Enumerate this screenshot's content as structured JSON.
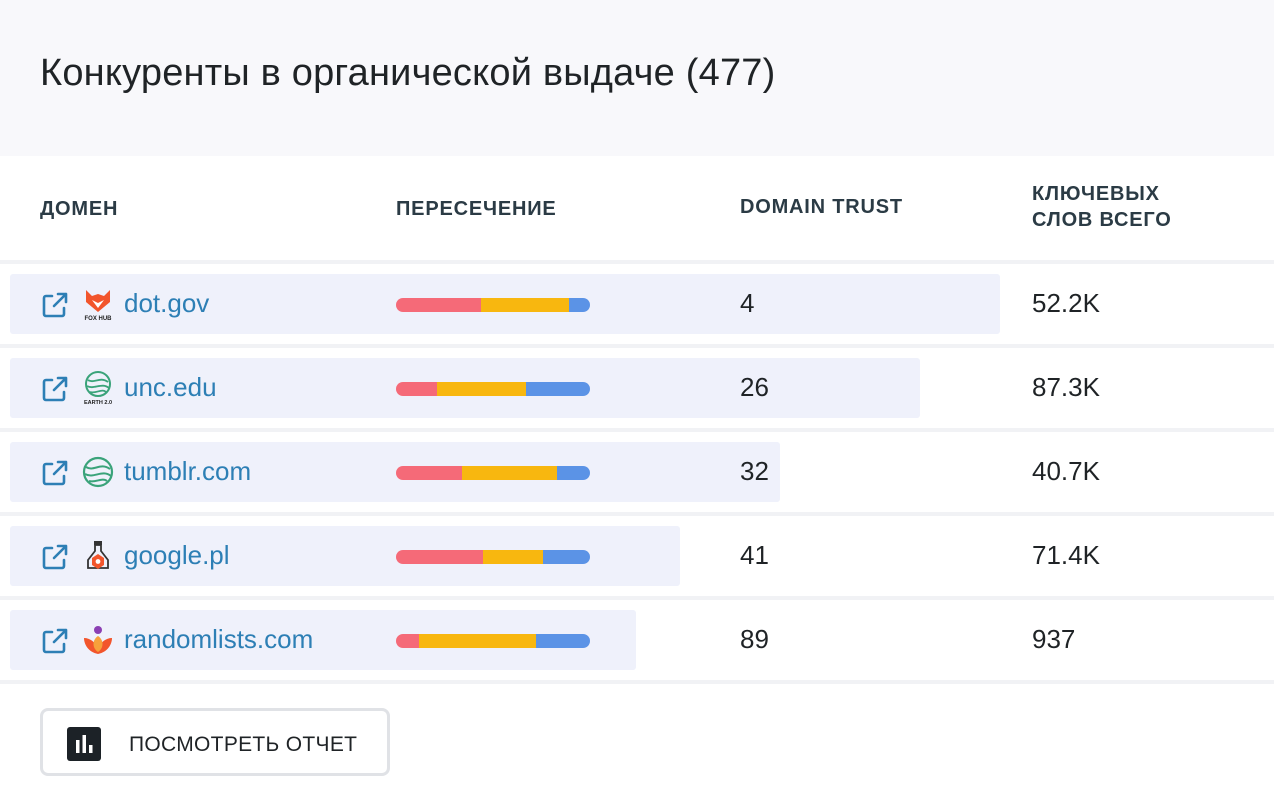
{
  "header": {
    "title": "Конкуренты в органической выдаче (477)"
  },
  "columns": {
    "domain": "ДОМЕН",
    "overlap": "ПЕРЕСЕЧЕНИЕ",
    "trust": "DOMAIN TRUST",
    "keywords_line1": "КЛЮЧЕВЫХ",
    "keywords_line2": "СЛОВ ВСЕГО"
  },
  "colors": {
    "link": "#2d7fb5",
    "bar_red": "#f56a78",
    "bar_yellow": "#f8b70f",
    "bar_blue": "#5b93e6"
  },
  "rows": [
    {
      "domain": "dot.gov",
      "logo_icon": "fox-hub-logo-icon",
      "logo_caption": "FOX HUB",
      "overlap": [
        0.44,
        0.45,
        0.11
      ],
      "trust": "4",
      "keywords": "52.2K"
    },
    {
      "domain": "unc.edu",
      "logo_icon": "earth-logo-icon",
      "logo_caption": "EARTH 2.0",
      "overlap": [
        0.21,
        0.46,
        0.33
      ],
      "trust": "26",
      "keywords": "87.3K"
    },
    {
      "domain": "tumblr.com",
      "logo_icon": "earth-logo-icon",
      "logo_caption": "",
      "overlap": [
        0.34,
        0.49,
        0.17
      ],
      "trust": "32",
      "keywords": "40.7K"
    },
    {
      "domain": "google.pl",
      "logo_icon": "flask-logo-icon",
      "logo_caption": "",
      "overlap": [
        0.45,
        0.31,
        0.24
      ],
      "trust": "41",
      "keywords": "71.4K"
    },
    {
      "domain": "randomlists.com",
      "logo_icon": "lotus-logo-icon",
      "logo_caption": "",
      "overlap": [
        0.12,
        0.6,
        0.28
      ],
      "trust": "89",
      "keywords": "937"
    }
  ],
  "report_button": {
    "label": "ПОСМОТРЕТЬ ОТЧЕТ",
    "icon": "bar-chart-icon"
  }
}
